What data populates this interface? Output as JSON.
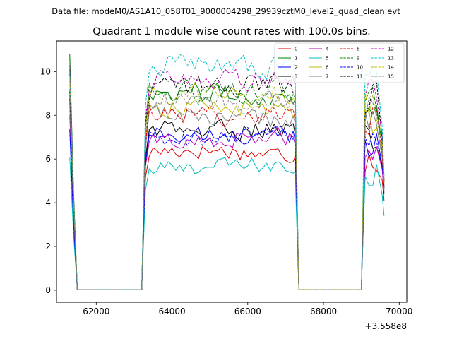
{
  "header": {
    "data_file": "Data file: modeM0/AS1A10_058T01_9000004298_29939cztM0_level2_quad_clean.evt"
  },
  "chart_data": {
    "type": "line",
    "title": "Quadrant 1 module wise count rates with 100.0s bins.",
    "xlabel": "",
    "ylabel": "",
    "x_offset_label": "+3.558e8",
    "xlim": [
      60950,
      70200
    ],
    "ylim": [
      -0.55,
      11.4
    ],
    "xticks": [
      62000,
      64000,
      66000,
      68000,
      70000
    ],
    "xtick_labels": [
      "62000",
      "64000",
      "66000",
      "68000",
      "70000"
    ],
    "yticks": [
      0,
      2,
      4,
      6,
      8,
      10
    ],
    "ytick_labels": [
      "0",
      "2",
      "4",
      "6",
      "8",
      "10"
    ],
    "grid": false,
    "legend_position": "top-right",
    "segments": [
      {
        "x_start": 61300,
        "x_end": 61500,
        "rises": false,
        "falls_to_zero": true
      },
      {
        "x_start": 63200,
        "x_end": 67350,
        "rises": true,
        "falls_to_zero": true
      },
      {
        "x_start": 69000,
        "x_end": 69600,
        "rises": true,
        "falls_to_zero": false
      }
    ],
    "series": [
      {
        "name": "0",
        "color": "#e00000",
        "dash": "solid",
        "start_value": 10.1,
        "mean_active": 6.3,
        "end_value": 4.1
      },
      {
        "name": "1",
        "color": "#008000",
        "dash": "solid",
        "start_value": 10.8,
        "mean_active": 9.0,
        "end_value": 4.6
      },
      {
        "name": "2",
        "color": "#0000ff",
        "dash": "solid",
        "start_value": 7.4,
        "mean_active": 7.1,
        "end_value": 4.7
      },
      {
        "name": "3",
        "color": "#000000",
        "dash": "solid",
        "start_value": 8.8,
        "mean_active": 7.4,
        "end_value": 4.4
      },
      {
        "name": "4",
        "color": "#c000c0",
        "dash": "solid",
        "start_value": 8.0,
        "mean_active": 6.9,
        "end_value": 4.5
      },
      {
        "name": "5",
        "color": "#00bfbf",
        "dash": "solid",
        "start_value": 6.1,
        "mean_active": 5.6,
        "end_value": 3.4
      },
      {
        "name": "6",
        "color": "#bfbf00",
        "dash": "solid",
        "start_value": 9.5,
        "mean_active": 8.3,
        "end_value": 4.8
      },
      {
        "name": "7",
        "color": "#808080",
        "dash": "solid",
        "start_value": 8.4,
        "mean_active": 7.9,
        "end_value": 4.6
      },
      {
        "name": "8",
        "color": "#e00000",
        "dash": "dashed",
        "start_value": 9.9,
        "mean_active": 8.1,
        "end_value": 4.8
      },
      {
        "name": "9",
        "color": "#008000",
        "dash": "dashed",
        "start_value": 10.6,
        "mean_active": 9.1,
        "end_value": 5.0
      },
      {
        "name": "10",
        "color": "#0000ff",
        "dash": "dashed",
        "start_value": 7.3,
        "mean_active": 7.0,
        "end_value": 4.7
      },
      {
        "name": "11",
        "color": "#000000",
        "dash": "dashed",
        "start_value": 9.1,
        "mean_active": 9.3,
        "end_value": 5.0
      },
      {
        "name": "12",
        "color": "#c000c0",
        "dash": "dashed",
        "start_value": 10.3,
        "mean_active": 9.6,
        "end_value": 5.1
      },
      {
        "name": "13",
        "color": "#00bfbf",
        "dash": "dashed",
        "start_value": 10.0,
        "mean_active": 10.3,
        "end_value": 5.2
      },
      {
        "name": "14",
        "color": "#bfbf00",
        "dash": "dashed",
        "start_value": 9.7,
        "mean_active": 9.0,
        "end_value": 5.0
      },
      {
        "name": "15",
        "color": "#808080",
        "dash": "dashed",
        "start_value": 9.2,
        "mean_active": 8.7,
        "end_value": 4.9
      }
    ]
  }
}
